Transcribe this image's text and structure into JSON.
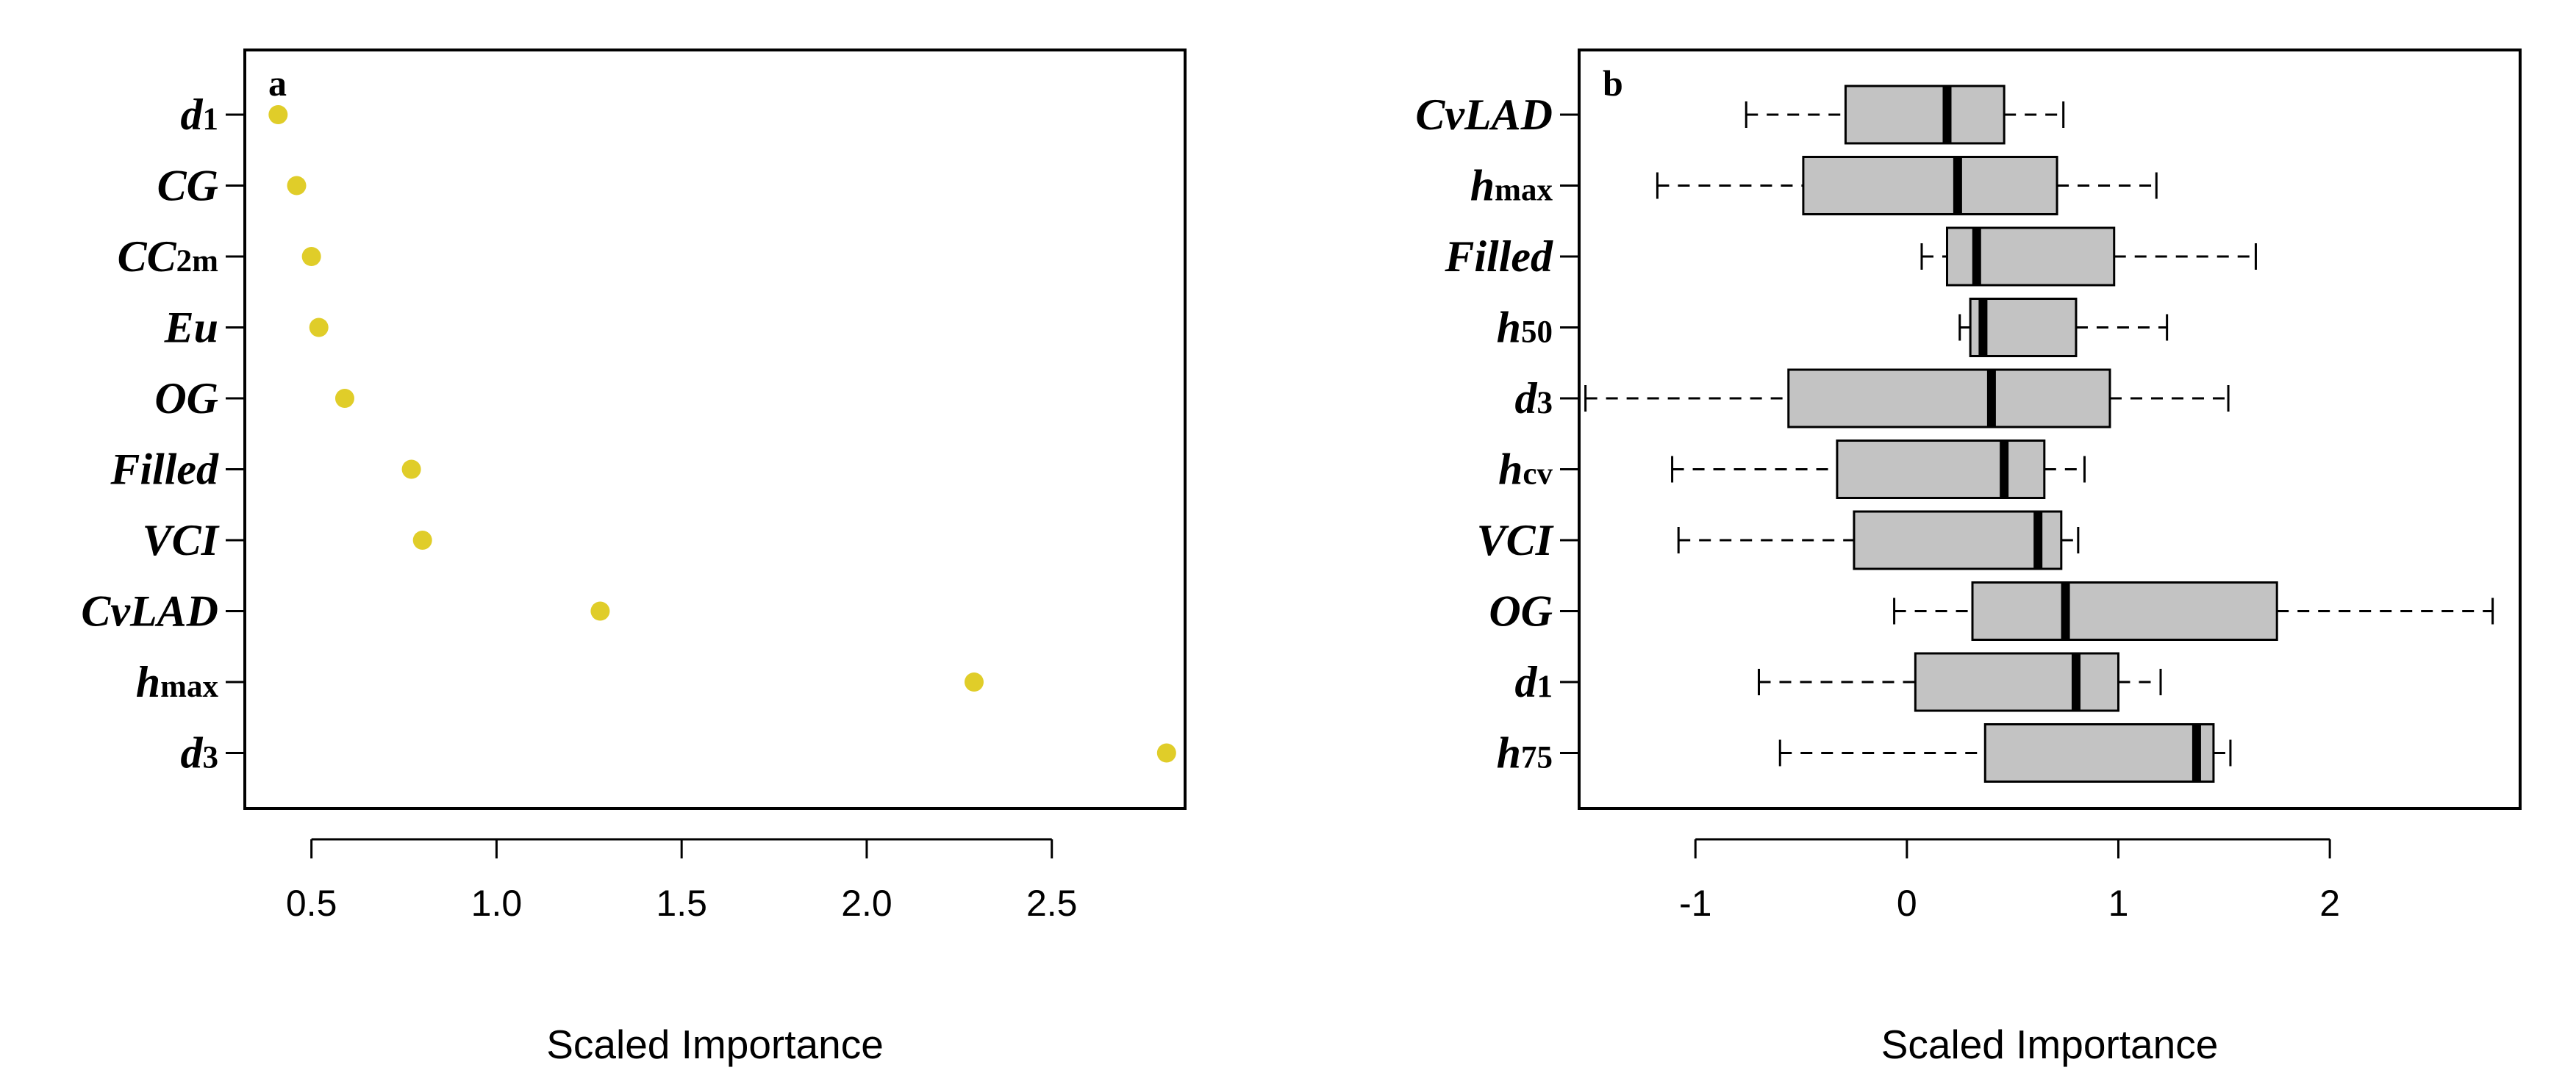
{
  "chart_data": [
    {
      "type": "scatter",
      "panel_label": "a",
      "xlabel": "Scaled Importance",
      "xlim": [
        0.32,
        2.86
      ],
      "xticks": [
        "0.5",
        "1.0",
        "1.5",
        "2.0",
        "2.5"
      ],
      "point_color": "#e0cd29",
      "grid": false,
      "points": [
        {
          "label": "d",
          "sub": "1",
          "x": 0.41
        },
        {
          "label": "CG",
          "sub": "",
          "x": 0.46
        },
        {
          "label": "CC",
          "sub": "2m",
          "x": 0.5
        },
        {
          "label": "Eu",
          "sub": "",
          "x": 0.52
        },
        {
          "label": "OG",
          "sub": "",
          "x": 0.59
        },
        {
          "label": "Filled",
          "sub": "",
          "x": 0.77
        },
        {
          "label": "VCI",
          "sub": "",
          "x": 0.8
        },
        {
          "label": "CvLAD",
          "sub": "",
          "x": 1.28
        },
        {
          "label": "h",
          "sub": "max",
          "x": 2.29
        },
        {
          "label": "d",
          "sub": "3",
          "x": 2.81
        }
      ]
    },
    {
      "type": "boxplot",
      "panel_label": "b",
      "xlabel": "Scaled Importance",
      "xlim": [
        -1.55,
        2.9
      ],
      "xticks": [
        "-1",
        "0",
        "1",
        "2"
      ],
      "box_color": "#c3c3c3",
      "grid": false,
      "boxes": [
        {
          "label": "CvLAD",
          "sub": "",
          "whisker_low": -0.76,
          "q1": -0.29,
          "median": 0.19,
          "q3": 0.46,
          "whisker_high": 0.74
        },
        {
          "label": "h",
          "sub": "max",
          "whisker_low": -1.18,
          "q1": -0.49,
          "median": 0.24,
          "q3": 0.71,
          "whisker_high": 1.18
        },
        {
          "label": "Filled",
          "sub": "",
          "whisker_low": 0.07,
          "q1": 0.19,
          "median": 0.33,
          "q3": 0.98,
          "whisker_high": 1.65
        },
        {
          "label": "h",
          "sub": "50",
          "whisker_low": 0.25,
          "q1": 0.3,
          "median": 0.36,
          "q3": 0.8,
          "whisker_high": 1.23
        },
        {
          "label": "d",
          "sub": "3",
          "whisker_low": -1.52,
          "q1": -0.56,
          "median": 0.4,
          "q3": 0.96,
          "whisker_high": 1.52
        },
        {
          "label": "h",
          "sub": "cv",
          "whisker_low": -1.11,
          "q1": -0.33,
          "median": 0.46,
          "q3": 0.65,
          "whisker_high": 0.84
        },
        {
          "label": "VCI",
          "sub": "",
          "whisker_low": -1.08,
          "q1": -0.25,
          "median": 0.62,
          "q3": 0.73,
          "whisker_high": 0.81
        },
        {
          "label": "OG",
          "sub": "",
          "whisker_low": -0.06,
          "q1": 0.31,
          "median": 0.75,
          "q3": 1.75,
          "whisker_high": 2.77
        },
        {
          "label": "d",
          "sub": "1",
          "whisker_low": -0.7,
          "q1": 0.04,
          "median": 0.8,
          "q3": 1.0,
          "whisker_high": 1.2
        },
        {
          "label": "h",
          "sub": "75",
          "whisker_low": -0.6,
          "q1": 0.37,
          "median": 1.37,
          "q3": 1.45,
          "whisker_high": 1.53
        }
      ]
    }
  ]
}
